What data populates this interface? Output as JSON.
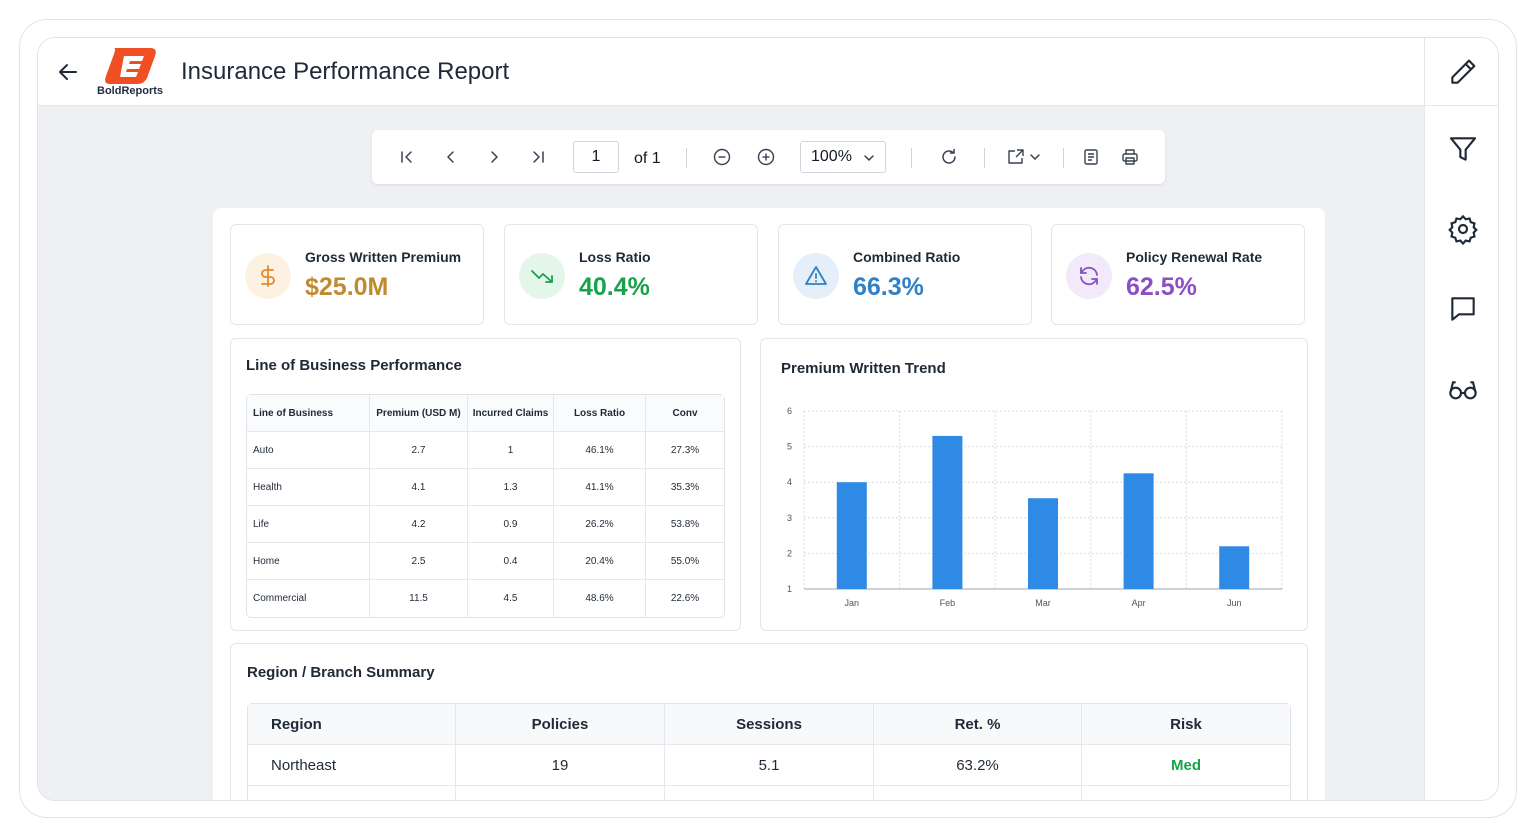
{
  "header": {
    "title": "Insurance Performance Report",
    "logo_text": "BoldReports"
  },
  "toolbar": {
    "page_value": "1",
    "page_of": "of 1",
    "zoom": "100%"
  },
  "kpis": [
    {
      "label": "Gross Written Premium",
      "value": "$25.0M",
      "color": "#c08a2e",
      "icon": "dollar-icon"
    },
    {
      "label": "Loss Ratio",
      "value": "40.4%",
      "color": "#16a34a",
      "icon": "trending-down-icon"
    },
    {
      "label": "Combined Ratio",
      "value": "66.3%",
      "color": "#2f80c7",
      "icon": "warning-icon"
    },
    {
      "label": "Policy Renewal Rate",
      "value": "62.5%",
      "color": "#8b4fc4",
      "icon": "refresh-icon"
    }
  ],
  "lob": {
    "title": "Line of Business Performance",
    "columns": [
      "Line of Business",
      "Premium (USD M)",
      "Incurred Claims",
      "Loss Ratio",
      "Conv"
    ],
    "rows": [
      [
        "Auto",
        "2.7",
        "1",
        "46.1%",
        "27.3%"
      ],
      [
        "Health",
        "4.1",
        "1.3",
        "41.1%",
        "35.3%"
      ],
      [
        "Life",
        "4.2",
        "0.9",
        "26.2%",
        "53.8%"
      ],
      [
        "Home",
        "2.5",
        "0.4",
        "20.4%",
        "55.0%"
      ],
      [
        "Commercial",
        "11.5",
        "4.5",
        "48.6%",
        "22.6%"
      ]
    ]
  },
  "trend": {
    "title": "Premium Written Trend"
  },
  "chart_data": {
    "type": "bar",
    "title": "Premium Written Trend",
    "categories": [
      "Jan",
      "Feb",
      "Mar",
      "Apr",
      "Jun"
    ],
    "values": [
      4.0,
      5.3,
      3.55,
      4.25,
      2.2
    ],
    "ylim": [
      1,
      6
    ],
    "yticks": [
      "1",
      "2",
      "3",
      "4",
      "5",
      "6"
    ],
    "grid": true,
    "bar_color": "#2f8ae6"
  },
  "region": {
    "title": "Region / Branch Summary",
    "columns": [
      "Region",
      "Policies",
      "Sessions",
      "Ret. %",
      "Risk"
    ],
    "rows": [
      [
        "Northeast",
        "19",
        "5.1",
        "63.2%",
        "Med"
      ]
    ]
  }
}
